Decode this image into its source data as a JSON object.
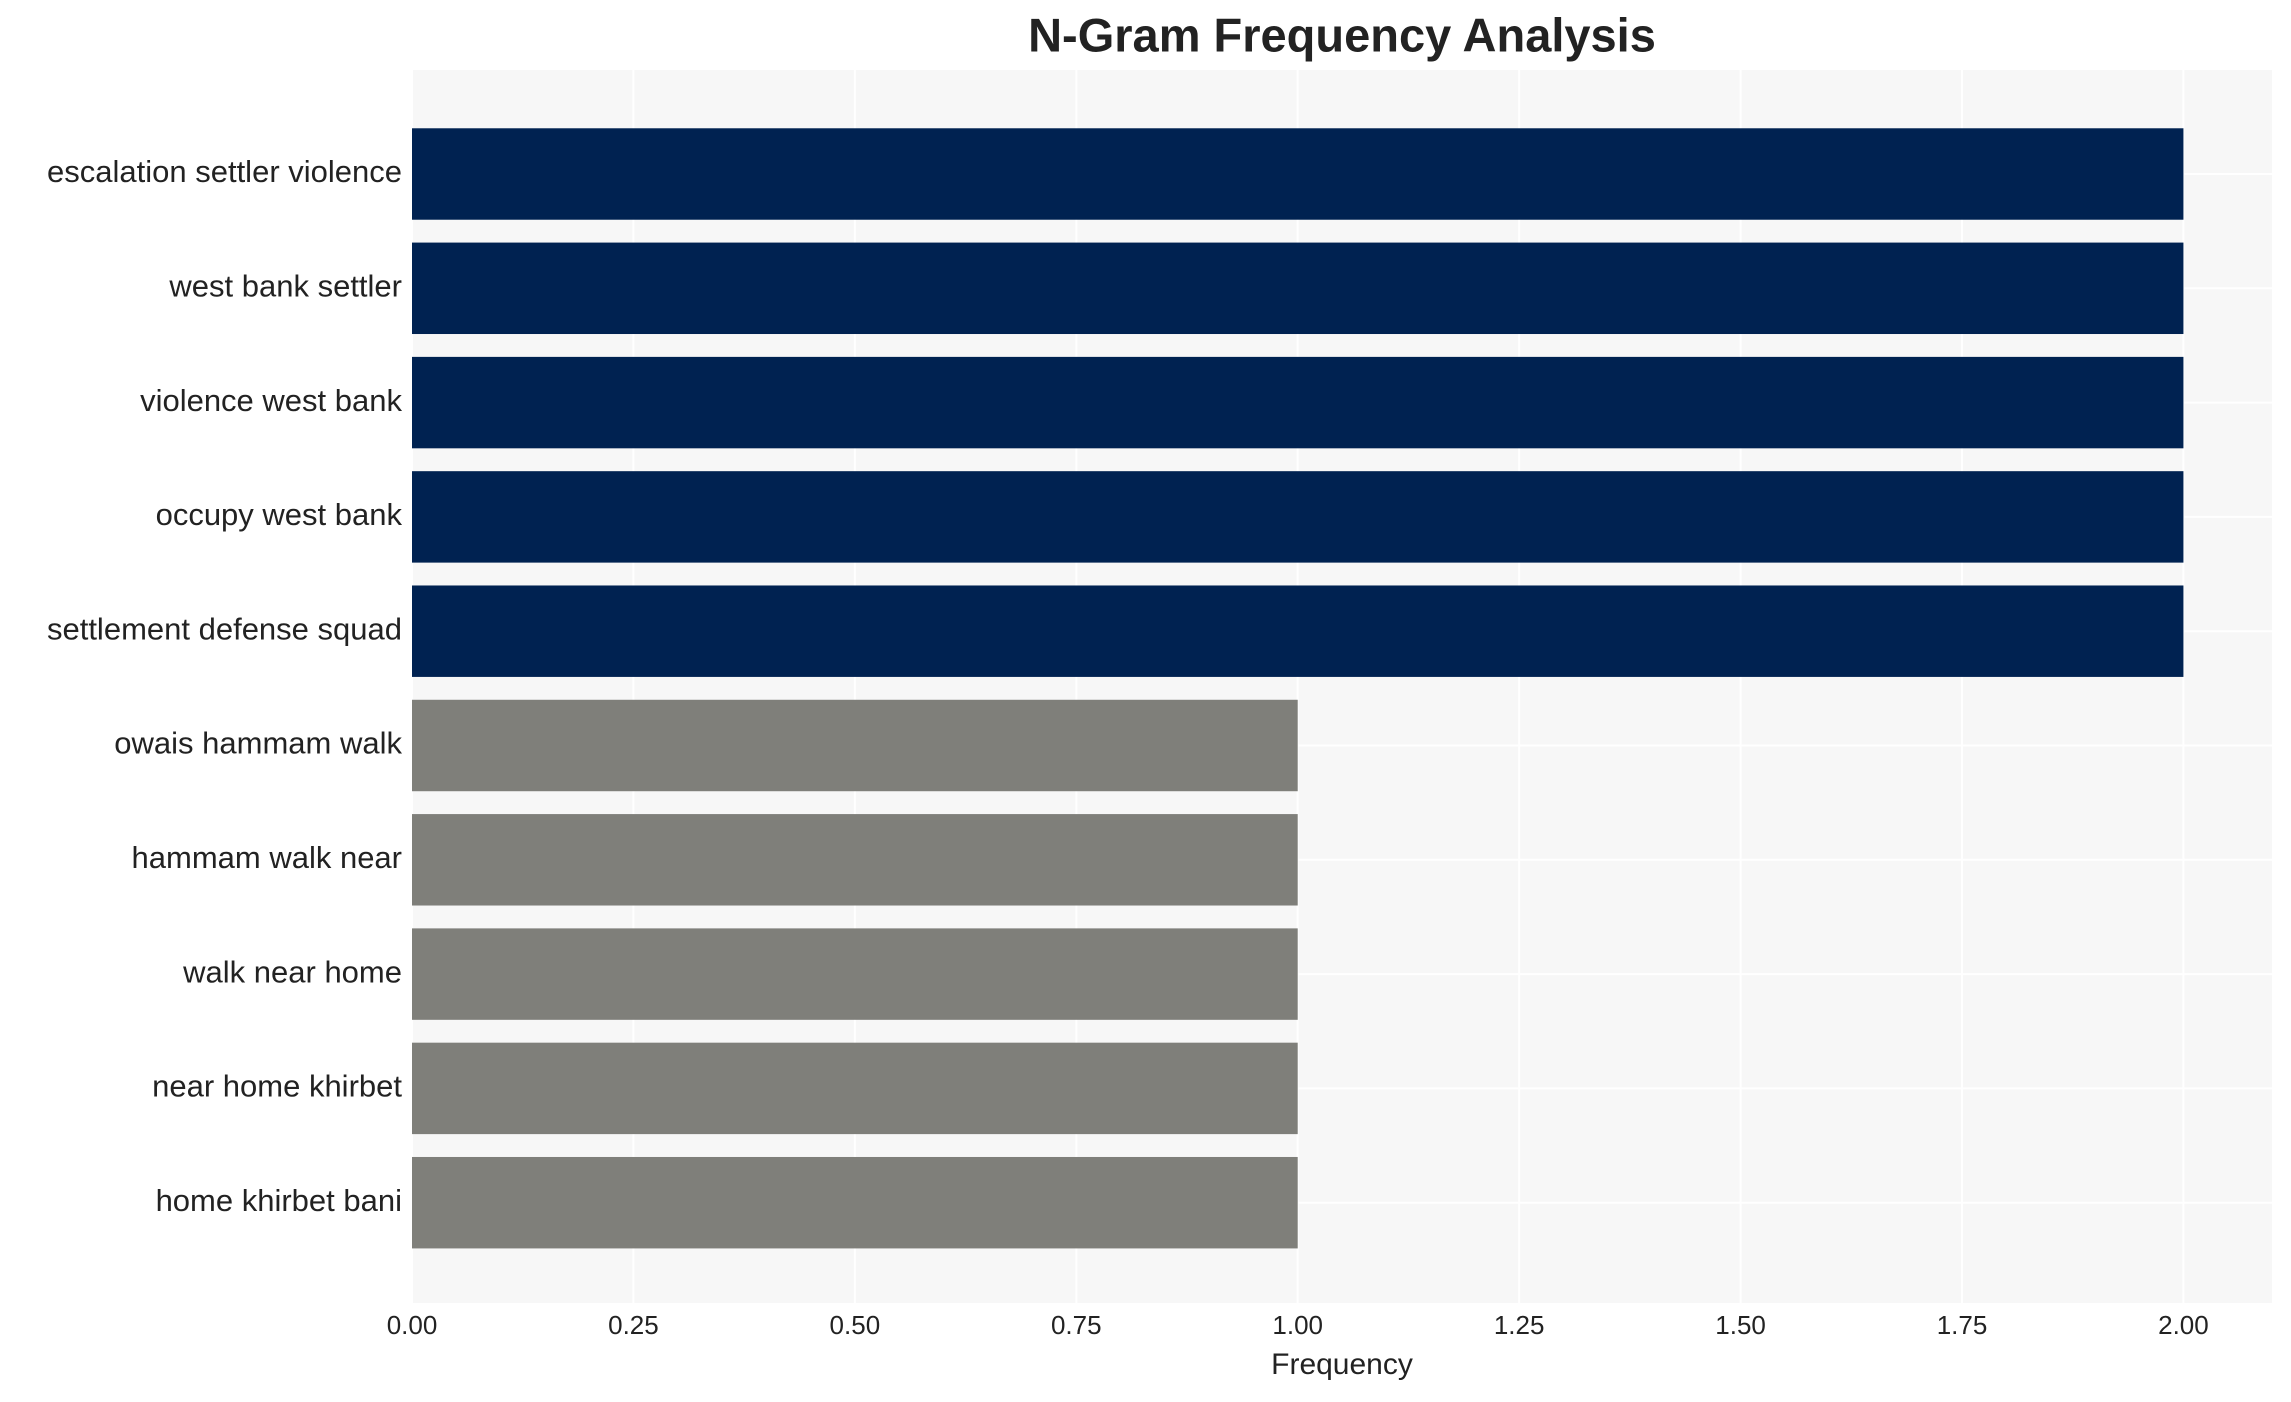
{
  "chart_data": {
    "type": "barh",
    "title": "N-Gram Frequency Analysis",
    "x_label": "Frequency",
    "categories": [
      "escalation settler violence",
      "west bank settler",
      "violence west bank",
      "occupy west bank",
      "settlement defense squad",
      "owais hammam walk",
      "hammam walk near",
      "walk near home",
      "near home khirbet",
      "home khirbet bani"
    ],
    "values": [
      2,
      2,
      2,
      2,
      2,
      1,
      1,
      1,
      1,
      1
    ],
    "colors": [
      "#002251",
      "#002251",
      "#002251",
      "#002251",
      "#002251",
      "#7f7f7a",
      "#7f7f7a",
      "#7f7f7a",
      "#7f7f7a",
      "#7f7f7a"
    ],
    "xlim": [
      0,
      2.1
    ],
    "xticks": [
      {
        "value": 0,
        "label": "0.00"
      },
      {
        "value": 0.25,
        "label": "0.25"
      },
      {
        "value": 0.5,
        "label": "0.50"
      },
      {
        "value": 0.75,
        "label": "0.75"
      },
      {
        "value": 1,
        "label": "1.00"
      },
      {
        "value": 1.25,
        "label": "1.25"
      },
      {
        "value": 1.5,
        "label": "1.50"
      },
      {
        "value": 1.75,
        "label": "1.75"
      },
      {
        "value": 2,
        "label": "2.00"
      }
    ],
    "grid": true
  }
}
